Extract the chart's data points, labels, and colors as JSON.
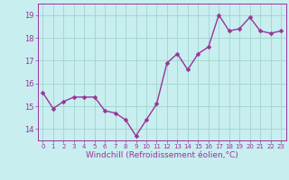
{
  "x": [
    0,
    1,
    2,
    3,
    4,
    5,
    6,
    7,
    8,
    9,
    10,
    11,
    12,
    13,
    14,
    15,
    16,
    17,
    18,
    19,
    20,
    21,
    22,
    23
  ],
  "y": [
    15.6,
    14.9,
    15.2,
    15.4,
    15.4,
    15.4,
    14.8,
    14.7,
    14.4,
    13.7,
    14.4,
    15.1,
    16.9,
    17.3,
    16.6,
    17.3,
    17.6,
    19.0,
    18.3,
    18.4,
    18.9,
    18.3,
    18.2,
    18.3
  ],
  "line_color": "#993399",
  "marker": "D",
  "markersize": 2.5,
  "linewidth": 1.0,
  "xlabel": "Windchill (Refroidissement éolien,°C)",
  "xlabel_fontsize": 6.5,
  "bg_color": "#c8eef0",
  "grid_color": "#a0d4cc",
  "tick_color": "#993399",
  "label_color": "#993399",
  "xlim": [
    -0.5,
    23.5
  ],
  "ylim": [
    13.5,
    19.5
  ],
  "yticks": [
    14,
    15,
    16,
    17,
    18,
    19
  ],
  "xticks": [
    0,
    1,
    2,
    3,
    4,
    5,
    6,
    7,
    8,
    9,
    10,
    11,
    12,
    13,
    14,
    15,
    16,
    17,
    18,
    19,
    20,
    21,
    22,
    23
  ],
  "figsize": [
    3.2,
    2.0
  ],
  "dpi": 100
}
